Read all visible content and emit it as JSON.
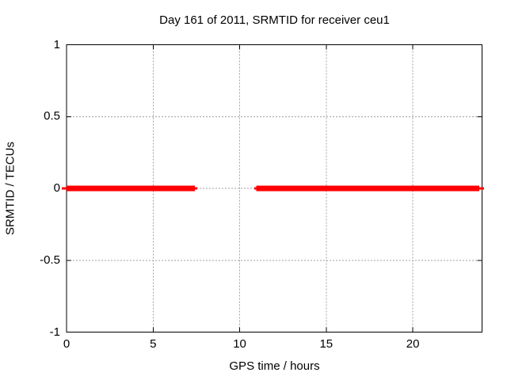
{
  "header": {
    "title": "Day 161 of 2011, SRMTID for receiver ceu1"
  },
  "chart_data": {
    "type": "line",
    "title": "Day 161 of 2011, SRMTID for receiver ceu1",
    "xlabel": "GPS time / hours",
    "ylabel": "SRMTID / TECUs",
    "xlim": [
      0,
      24
    ],
    "ylim": [
      -1,
      1
    ],
    "grid": true,
    "legend": "none",
    "x_ticks": [
      0,
      5,
      10,
      15,
      20
    ],
    "x_tick_labels": [
      "0",
      "5",
      "10",
      "15",
      "20"
    ],
    "y_ticks": [
      -1,
      -0.5,
      0,
      0.5,
      1
    ],
    "y_tick_labels": [
      "-1",
      "-0.5",
      "0",
      "0.5",
      "1"
    ],
    "series": [
      {
        "name": "SRMTID",
        "color": "#ff0000",
        "segments": [
          {
            "y": 0,
            "x_line_start": -0.27,
            "x_thick_start": 0.0,
            "x_thick_end": 7.42,
            "x_line_end": 7.56
          },
          {
            "y": 0,
            "x_line_start": 10.84,
            "x_thick_start": 10.97,
            "x_thick_end": 23.85,
            "x_line_end": 24.11
          }
        ]
      }
    ],
    "colors": {
      "background": "#ffffff",
      "frame": "#000000",
      "grid": "#a0a0a0",
      "line": "#ff0000"
    }
  }
}
